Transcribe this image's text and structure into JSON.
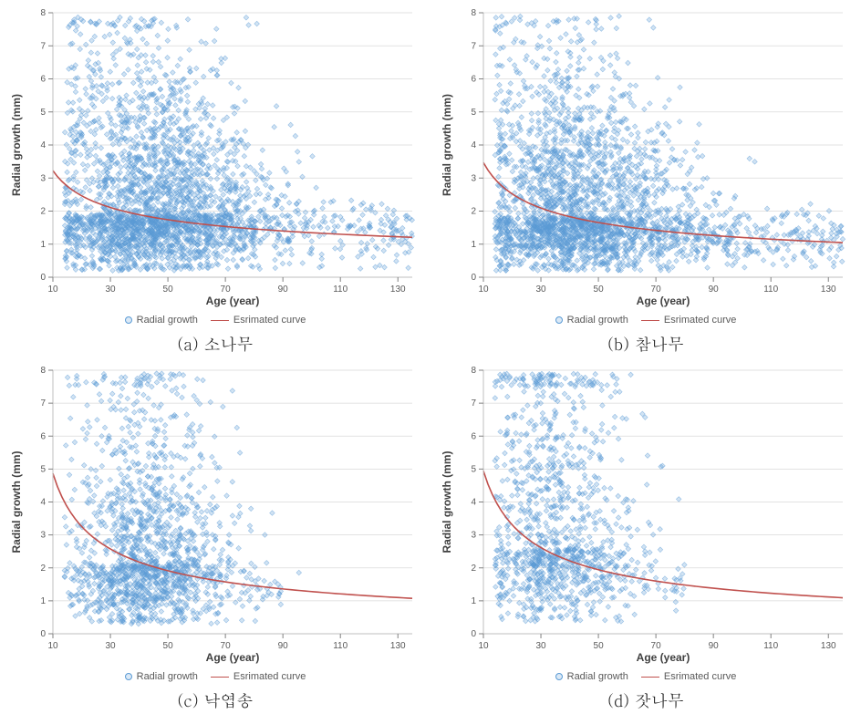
{
  "common": {
    "xlabel": "Age (year)",
    "ylabel": "Radial growth (mm)",
    "xlabel_fontsize": 12,
    "ylabel_fontsize": 12,
    "axis_label_fontweight": "bold",
    "tick_fontsize": 10,
    "xlim": [
      10,
      135
    ],
    "ylim": [
      0,
      8
    ],
    "xticks": [
      10,
      30,
      50,
      70,
      90,
      110,
      130
    ],
    "yticks": [
      0,
      1,
      2,
      3,
      4,
      5,
      6,
      7,
      8
    ],
    "grid_color": "#d9d9d9",
    "grid_width": 0.7,
    "axis_color": "#bfbfbf",
    "tick_color": "#808080",
    "tick_label_color": "#595959",
    "label_color": "#404040",
    "background_color": "#ffffff",
    "scatter_color": "#5b9bd5",
    "scatter_opacity": 0.28,
    "scatter_stroke_opacity": 0.6,
    "scatter_size": 2.8,
    "curve_color": "#c0504d",
    "curve_width": 1.6,
    "legend": {
      "scatter_label": "Radial growth",
      "curve_label": "Esrimated curve"
    }
  },
  "panels": [
    {
      "id": "a",
      "caption": "(a) 소나무",
      "scatter_seed": 101,
      "scatter_n": 2600,
      "scatter_x_center": 45,
      "scatter_x_spread": 17,
      "scatter_x_skew": 1.15,
      "scatter_y_center": 1.9,
      "scatter_y_spread": 1.0,
      "scatter_y_min": 0.2,
      "scatter_y_max_scale": 5.8,
      "tail_n": 220,
      "tail_x_lo": 70,
      "tail_x_hi": 135,
      "tail_y_center": 1.4,
      "tail_y_spread": 0.5,
      "curve": {
        "a": 7.9,
        "b": 0.41,
        "c": 0.15,
        "y_at_xmin": 3.1,
        "y_at_xmax": 1.25
      }
    },
    {
      "id": "b",
      "caption": "(b) 참나무",
      "scatter_seed": 202,
      "scatter_n": 2400,
      "scatter_x_center": 42,
      "scatter_x_spread": 16,
      "scatter_x_skew": 1.25,
      "scatter_y_center": 1.8,
      "scatter_y_spread": 0.95,
      "scatter_y_min": 0.2,
      "scatter_y_max_scale": 5.6,
      "tail_n": 260,
      "tail_x_lo": 70,
      "tail_x_hi": 135,
      "tail_y_center": 1.2,
      "tail_y_spread": 0.45,
      "curve": {
        "a": 10.0,
        "b": 0.46,
        "c": 0.0,
        "y_at_xmin": 3.55,
        "y_at_xmax": 1.05
      }
    },
    {
      "id": "c",
      "caption": "(c) 낙엽송",
      "scatter_seed": 303,
      "scatter_n": 1500,
      "scatter_x_center": 42,
      "scatter_x_spread": 13,
      "scatter_x_skew": 1.15,
      "scatter_y_center": 2.1,
      "scatter_y_spread": 1.1,
      "scatter_y_min": 0.3,
      "scatter_y_max_scale": 5.4,
      "tail_n": 40,
      "tail_x_lo": 65,
      "tail_x_hi": 90,
      "tail_y_center": 1.3,
      "tail_y_spread": 0.4,
      "curve": {
        "a": 18.5,
        "b": 0.58,
        "c": 0.0,
        "y_at_xmin": 5.05,
        "y_at_xmax": 1.05
      }
    },
    {
      "id": "d",
      "caption": "(d) 잣나무",
      "scatter_seed": 404,
      "scatter_n": 1100,
      "scatter_x_center": 35,
      "scatter_x_spread": 12,
      "scatter_x_skew": 1.2,
      "scatter_y_center": 2.6,
      "scatter_y_spread": 1.25,
      "scatter_y_min": 0.35,
      "scatter_y_max_scale": 4.6,
      "tail_n": 30,
      "tail_x_lo": 60,
      "tail_x_hi": 82,
      "tail_y_center": 1.4,
      "tail_y_spread": 0.4,
      "curve": {
        "a": 18.8,
        "b": 0.58,
        "c": 0.0,
        "y_at_xmin": 5.1,
        "y_at_xmax": 1.05
      }
    }
  ]
}
